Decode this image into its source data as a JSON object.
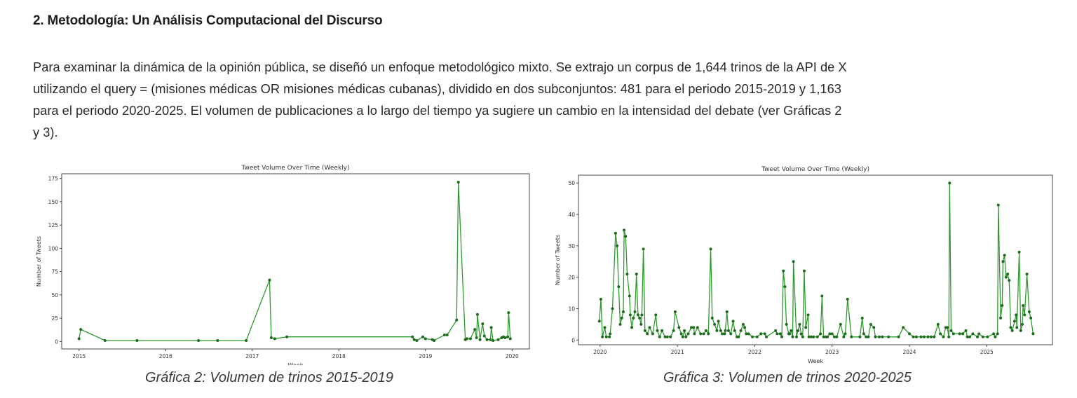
{
  "heading": "2. Metodología: Un Análisis Computacional del Discurso",
  "paragraph_lines": [
    "Para examinar la dinámica de la opinión pública, se diseñó un enfoque metodológico mixto. Se extrajo un corpus de 1,644 trinos de la API de X",
    "utilizando el query = (misiones médicas OR misiones médicas cubanas), dividido en dos subconjuntos: 481 para el periodo 2015-2019 y 1,163",
    "para el periodo 2020-2025. El volumen de publicaciones a lo largo del tiempo ya sugiere un cambio en la intensidad del debate (ver Gráficas 2",
    "y 3)."
  ],
  "captions": [
    "Gráfica 2: Volumen de trinos 2015-2019",
    "Gráfica 3: Volumen de trinos 2020-2025"
  ],
  "chart_data": [
    {
      "type": "line",
      "title": "Tweet Volume Over Time (Weekly)",
      "xlabel": "Week",
      "ylabel": "Number of Tweets",
      "xlim": [
        2014.8,
        2020.2
      ],
      "ylim": [
        -8,
        180
      ],
      "xticks": [
        "2015",
        "2016",
        "2017",
        "2018",
        "2019",
        "2020"
      ],
      "yticks": [
        "0",
        "25",
        "50",
        "75",
        "100",
        "125",
        "150",
        "175"
      ],
      "color": "#2e9a2e",
      "marker_color": "#1d6b1d",
      "grid": false,
      "x": [
        2015.0,
        2015.02,
        2015.3,
        2015.67,
        2016.38,
        2016.6,
        2016.93,
        2017.2,
        2017.22,
        2017.26,
        2017.4,
        2018.85,
        2018.87,
        2018.9,
        2018.97,
        2019.0,
        2019.08,
        2019.1,
        2019.22,
        2019.25,
        2019.36,
        2019.38,
        2019.46,
        2019.48,
        2019.52,
        2019.57,
        2019.59,
        2019.6,
        2019.63,
        2019.66,
        2019.68,
        2019.71,
        2019.75,
        2019.76,
        2019.78,
        2019.84,
        2019.88,
        2019.9,
        2019.92,
        2019.95,
        2019.96,
        2019.98
      ],
      "y": [
        3,
        13,
        1,
        1,
        1,
        1,
        1,
        66,
        4,
        3,
        5,
        5,
        2,
        1,
        5,
        3,
        2,
        1,
        7,
        7,
        23,
        171,
        2,
        3,
        3,
        13,
        4,
        29,
        2,
        19,
        6,
        2,
        2,
        15,
        1,
        2,
        4,
        5,
        4,
        5,
        31,
        3
      ]
    },
    {
      "type": "line",
      "title": "Tweet Volume Over Time (Weekly)",
      "xlabel": "Week",
      "ylabel": "Number of Tweets",
      "xlim": [
        2019.72,
        2025.85
      ],
      "ylim": [
        -1.5,
        52.5
      ],
      "xticks": [
        "2020",
        "2021",
        "2022",
        "2023",
        "2024",
        "2025"
      ],
      "yticks": [
        "0",
        "10",
        "20",
        "30",
        "40",
        "50"
      ],
      "color": "#2e9a2e",
      "marker_color": "#1d6b1d",
      "grid": false,
      "x": [
        2019.99,
        2020.01,
        2020.03,
        2020.06,
        2020.08,
        2020.12,
        2020.13,
        2020.16,
        2020.2,
        2020.22,
        2020.24,
        2020.26,
        2020.28,
        2020.3,
        2020.31,
        2020.33,
        2020.35,
        2020.38,
        2020.39,
        2020.41,
        2020.43,
        2020.45,
        2020.47,
        2020.49,
        2020.51,
        2020.53,
        2020.54,
        2020.56,
        2020.58,
        2020.61,
        2020.64,
        2020.68,
        2020.72,
        2020.74,
        2020.77,
        2020.8,
        2020.84,
        2020.87,
        2020.91,
        2020.95,
        2020.97,
        2021.02,
        2021.05,
        2021.07,
        2021.09,
        2021.11,
        2021.14,
        2021.18,
        2021.21,
        2021.22,
        2021.26,
        2021.3,
        2021.34,
        2021.37,
        2021.4,
        2021.43,
        2021.45,
        2021.48,
        2021.51,
        2021.53,
        2021.56,
        2021.58,
        2021.61,
        2021.62,
        2021.64,
        2021.66,
        2021.69,
        2021.72,
        2021.74,
        2021.77,
        2021.79,
        2021.82,
        2021.85,
        2021.87,
        2021.89,
        2021.92,
        2021.97,
        2022.03,
        2022.08,
        2022.13,
        2022.15,
        2022.27,
        2022.29,
        2022.33,
        2022.35,
        2022.37,
        2022.39,
        2022.41,
        2022.44,
        2022.45,
        2022.47,
        2022.49,
        2022.5,
        2022.54,
        2022.56,
        2022.58,
        2022.6,
        2022.62,
        2022.64,
        2022.66,
        2022.69,
        2022.7,
        2022.73,
        2022.76,
        2022.81,
        2022.85,
        2022.87,
        2022.89,
        2022.92,
        2022.94,
        2022.97,
        2023.0,
        2023.03,
        2023.06,
        2023.11,
        2023.15,
        2023.17,
        2023.2,
        2023.25,
        2023.36,
        2023.39,
        2023.41,
        2023.44,
        2023.47,
        2023.5,
        2023.54,
        2023.56,
        2023.61,
        2023.65,
        2023.73,
        2023.86,
        2023.92,
        2024.0,
        2024.05,
        2024.09,
        2024.15,
        2024.19,
        2024.24,
        2024.28,
        2024.32,
        2024.37,
        2024.4,
        2024.44,
        2024.47,
        2024.49,
        2024.51,
        2024.52,
        2024.54,
        2024.57,
        2024.65,
        2024.69,
        2024.73,
        2024.75,
        2024.78,
        2024.82,
        2024.88,
        2024.9,
        2024.95,
        2025.01,
        2025.09,
        2025.11,
        2025.14,
        2025.15,
        2025.18,
        2025.2,
        2025.21,
        2025.23,
        2025.25,
        2025.27,
        2025.29,
        2025.31,
        2025.33,
        2025.36,
        2025.38,
        2025.39,
        2025.42,
        2025.44,
        2025.46,
        2025.47,
        2025.49,
        2025.52,
        2025.55,
        2025.57,
        2025.6
      ],
      "y": [
        6,
        13,
        1,
        4,
        1,
        1,
        2,
        10,
        34,
        30,
        17,
        5,
        7,
        9,
        35,
        33,
        21,
        14,
        8,
        4,
        7,
        9,
        21,
        8,
        7,
        5,
        8,
        29,
        3,
        2,
        4,
        2,
        8,
        3,
        1,
        3,
        1,
        1,
        1,
        3,
        9,
        4,
        2,
        1,
        3,
        1,
        2,
        4,
        4,
        2,
        4,
        2,
        2,
        3,
        2,
        29,
        7,
        5,
        3,
        6,
        3,
        2,
        2,
        3,
        9,
        3,
        2,
        6,
        3,
        1,
        1,
        3,
        5,
        4,
        2,
        2,
        1,
        1,
        2,
        2,
        1,
        3,
        2,
        2,
        1,
        22,
        17,
        5,
        2,
        2,
        3,
        1,
        25,
        1,
        3,
        5,
        2,
        1,
        22,
        4,
        8,
        1,
        1,
        1,
        1,
        2,
        14,
        1,
        1,
        1,
        2,
        2,
        1,
        1,
        5,
        1,
        2,
        13,
        1,
        1,
        7,
        2,
        1,
        1,
        5,
        4,
        1,
        1,
        1,
        1,
        1,
        4,
        2,
        1,
        1,
        1,
        1,
        1,
        1,
        1,
        5,
        2,
        1,
        4,
        4,
        1,
        50,
        3,
        2,
        2,
        2,
        3,
        1,
        1,
        2,
        1,
        2,
        1,
        1,
        2,
        1,
        2,
        43,
        7,
        11,
        25,
        27,
        20,
        21,
        19,
        4,
        3,
        6,
        8,
        4,
        28,
        3,
        5,
        11,
        8,
        21,
        9,
        7,
        2
      ]
    }
  ]
}
